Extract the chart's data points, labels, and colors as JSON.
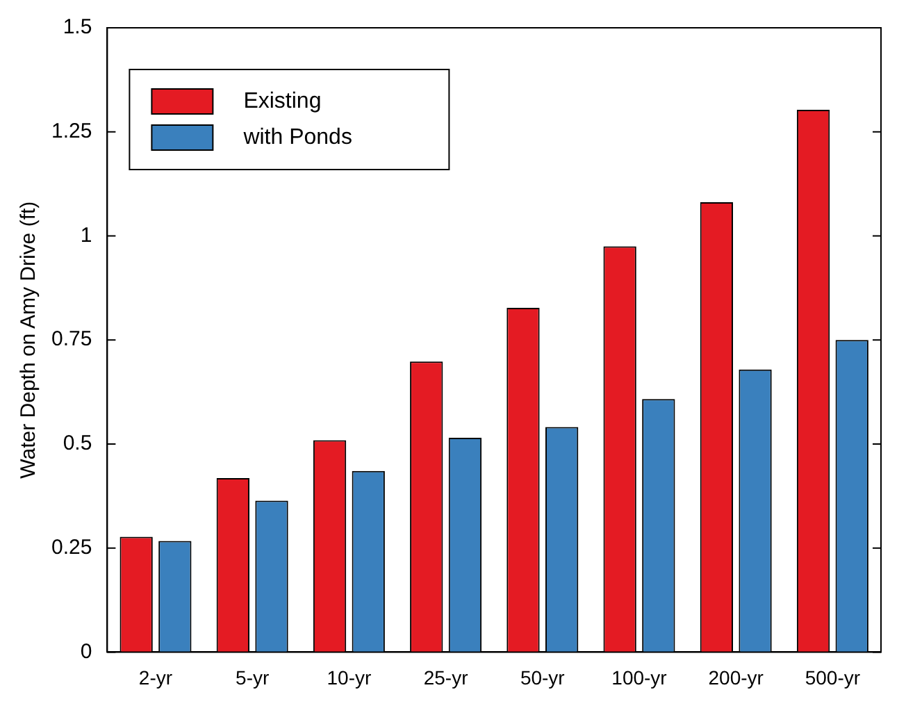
{
  "chart_data": {
    "type": "bar",
    "ylabel": "Water Depth on Amy Drive (ft)",
    "categories": [
      "2-yr",
      "5-yr",
      "10-yr",
      "25-yr",
      "50-yr",
      "100-yr",
      "200-yr",
      "500-yr"
    ],
    "series": [
      {
        "name": "Existing",
        "color": "#e41b23",
        "values": [
          0.277,
          0.418,
          0.509,
          0.698,
          0.827,
          0.975,
          1.081,
          1.303
        ]
      },
      {
        "name": "with Ponds",
        "color": "#3a80bd",
        "values": [
          0.267,
          0.364,
          0.435,
          0.515,
          0.541,
          0.608,
          0.679,
          0.75
        ]
      }
    ],
    "ylim": [
      0,
      1.5
    ],
    "yticks": [
      0,
      0.25,
      0.5,
      0.75,
      1,
      1.25,
      1.5
    ],
    "grid": false,
    "legend": "top left"
  }
}
